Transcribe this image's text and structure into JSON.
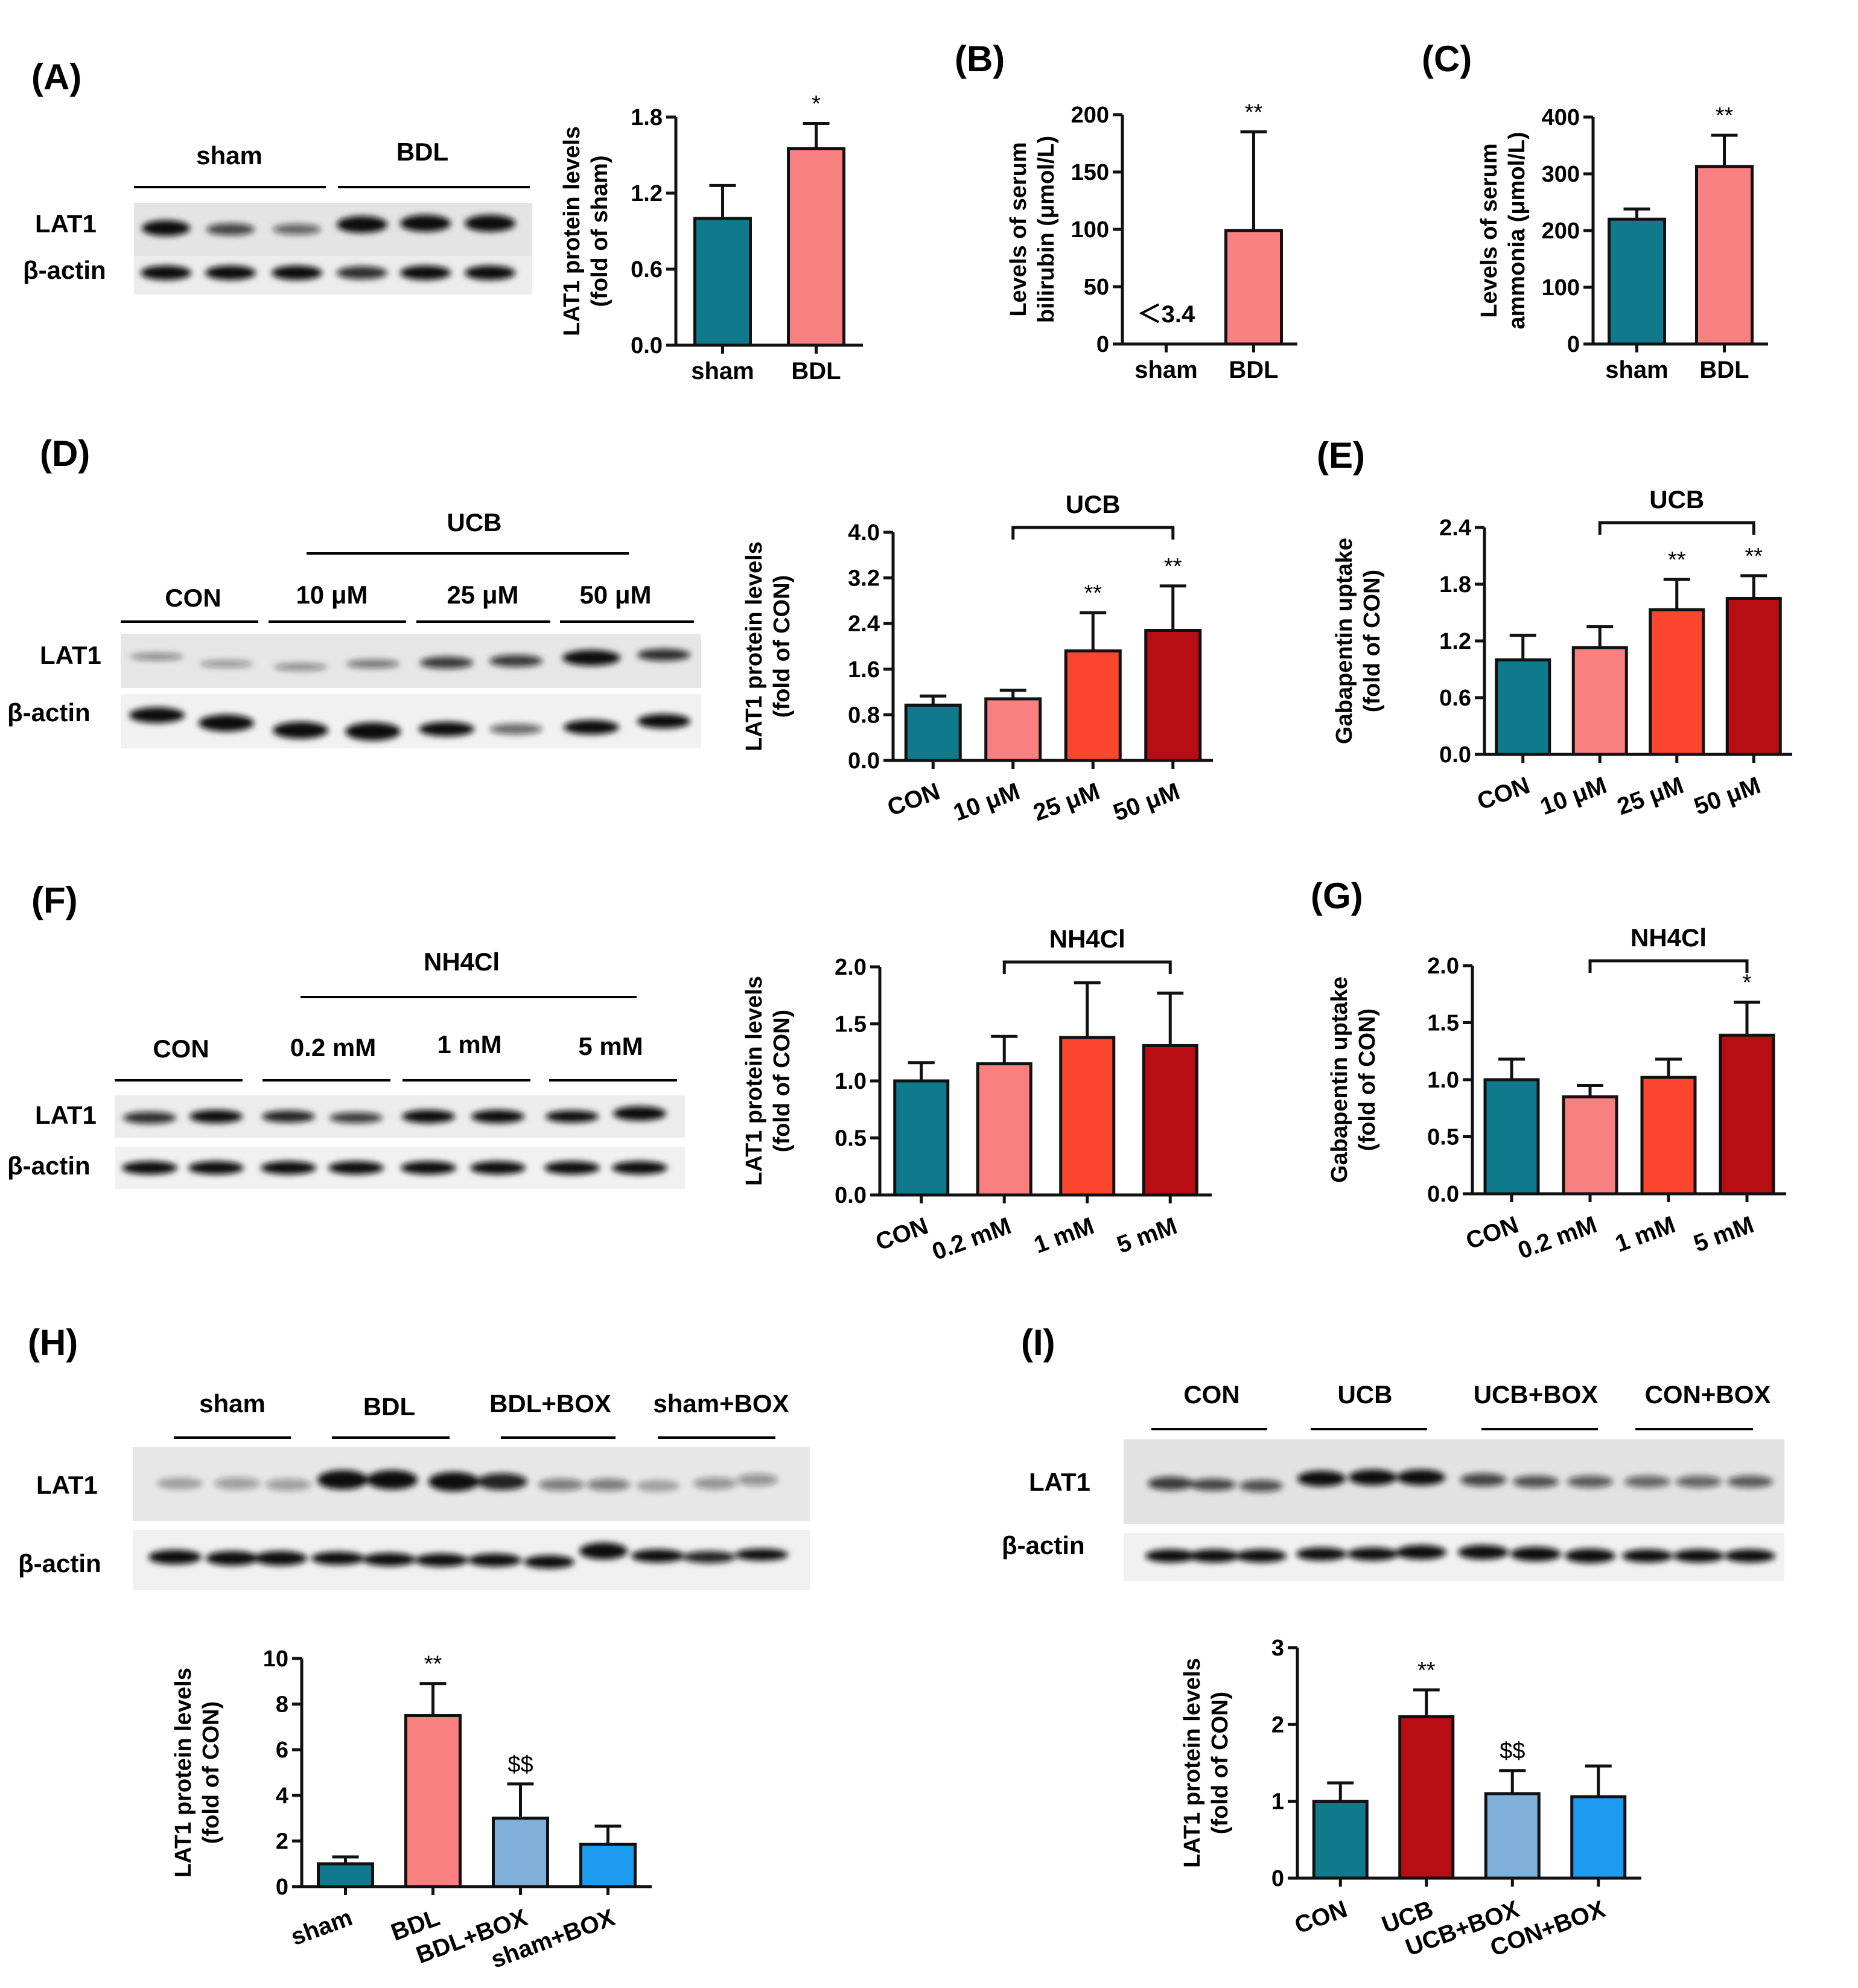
{
  "colors": {
    "teal": "#0f7a8c",
    "pink": "#f88080",
    "orange": "#fb462e",
    "darkred": "#b80d12",
    "lightblue": "#7fb0d9",
    "skyblue": "#1e9cf2"
  },
  "blots": [
    {
      "panel_label": "(A)",
      "groups": [
        "sham",
        "BDL"
      ],
      "rows": [
        "LAT1",
        "β-actin"
      ]
    },
    {
      "panel_label": "(D)",
      "super_group": "UCB",
      "groups": [
        "CON",
        "10 μM",
        "25 μM",
        "50 μM"
      ],
      "rows": [
        "LAT1",
        "β-actin"
      ]
    },
    {
      "panel_label": "(F)",
      "super_group": "NH4Cl",
      "groups": [
        "CON",
        "0.2 mM",
        "1 mM",
        "5 mM"
      ],
      "rows": [
        "LAT1",
        "β-actin"
      ]
    },
    {
      "panel_label": "(H)",
      "groups": [
        "sham",
        "BDL",
        "BDL+BOX",
        "sham+BOX"
      ],
      "rows": [
        "LAT1",
        "β-actin"
      ]
    },
    {
      "panel_label": "(I)",
      "groups": [
        "CON",
        "UCB",
        "UCB+BOX",
        "CON+BOX"
      ],
      "rows": [
        "LAT1",
        "β-actin"
      ]
    }
  ],
  "chart_data": [
    {
      "id": "A",
      "type": "bar",
      "ylabel": [
        "LAT1 protein levels",
        "(fold of sham)"
      ],
      "categories": [
        "sham",
        "BDL"
      ],
      "values": [
        1.0,
        1.55
      ],
      "errors": [
        0.26,
        0.2
      ],
      "colors": [
        "teal",
        "pink"
      ],
      "ylim": [
        0,
        1.8
      ],
      "yticks": [
        "0.0",
        "0.6",
        "1.2",
        "1.8"
      ],
      "annotations": [
        "",
        "*"
      ]
    },
    {
      "id": "B",
      "panel_label": "(B)",
      "type": "bar",
      "ylabel": [
        "Levels of serum",
        "bilirubin (μmol/L)"
      ],
      "categories": [
        "sham",
        "BDL"
      ],
      "values": [
        0,
        99
      ],
      "errors": [
        0,
        86
      ],
      "colors": [
        "teal",
        "pink"
      ],
      "ylim": [
        0,
        200
      ],
      "yticks": [
        "0",
        "50",
        "100",
        "150",
        "200"
      ],
      "annotations": [
        "",
        "**"
      ],
      "note": "＜3.4"
    },
    {
      "id": "C",
      "panel_label": "(C)",
      "type": "bar",
      "ylabel": [
        "Levels of serum",
        "ammonia (μmol/L)"
      ],
      "categories": [
        "sham",
        "BDL"
      ],
      "values": [
        220,
        313
      ],
      "errors": [
        18,
        55
      ],
      "colors": [
        "teal",
        "pink"
      ],
      "ylim": [
        0,
        400
      ],
      "yticks": [
        "0",
        "100",
        "200",
        "300",
        "400"
      ],
      "annotations": [
        "",
        "**"
      ]
    },
    {
      "id": "D",
      "type": "bar",
      "ylabel": [
        "LAT1 protein levels",
        "(fold of CON)"
      ],
      "categories": [
        "CON",
        "10 μM",
        "25 μM",
        "50 μM"
      ],
      "values": [
        0.97,
        1.08,
        1.92,
        2.28
      ],
      "errors": [
        0.16,
        0.15,
        0.67,
        0.78
      ],
      "colors": [
        "teal",
        "pink",
        "orange",
        "darkred"
      ],
      "ylim": [
        0,
        4.0
      ],
      "yticks": [
        "0.0",
        "0.8",
        "1.6",
        "2.4",
        "3.2",
        "4.0"
      ],
      "annotations": [
        "",
        "",
        "**",
        "**"
      ],
      "bracket": "UCB",
      "rotate": true
    },
    {
      "id": "E",
      "panel_label": "(E)",
      "type": "bar",
      "ylabel": [
        "Gabapentin uptake",
        "(fold of CON)"
      ],
      "categories": [
        "CON",
        "10 μM",
        "25 μM",
        "50 μM"
      ],
      "values": [
        1.0,
        1.13,
        1.53,
        1.65
      ],
      "errors": [
        0.26,
        0.22,
        0.32,
        0.24
      ],
      "colors": [
        "teal",
        "pink",
        "orange",
        "darkred"
      ],
      "ylim": [
        0,
        2.4
      ],
      "yticks": [
        "0.0",
        "0.6",
        "1.2",
        "1.8",
        "2.4"
      ],
      "annotations": [
        "",
        "",
        "**",
        "**"
      ],
      "bracket": "UCB",
      "rotate": true
    },
    {
      "id": "F",
      "type": "bar",
      "ylabel": [
        "LAT1 protein levels",
        "(fold of CON)"
      ],
      "categories": [
        "CON",
        "0.2 mM",
        "1 mM",
        "5 mM"
      ],
      "values": [
        1.0,
        1.15,
        1.38,
        1.31
      ],
      "errors": [
        0.16,
        0.24,
        0.48,
        0.46
      ],
      "colors": [
        "teal",
        "pink",
        "orange",
        "darkred"
      ],
      "ylim": [
        0,
        2.0
      ],
      "yticks": [
        "0.0",
        "0.5",
        "1.0",
        "1.5",
        "2.0"
      ],
      "annotations": [
        "",
        "",
        "",
        ""
      ],
      "bracket": "NH4Cl",
      "rotate": true
    },
    {
      "id": "G",
      "panel_label": "(G)",
      "type": "bar",
      "ylabel": [
        "Gabapentin uptake",
        "(fold of CON)"
      ],
      "categories": [
        "CON",
        "0.2 mM",
        "1 mM",
        "5 mM"
      ],
      "values": [
        1.0,
        0.85,
        1.02,
        1.39
      ],
      "errors": [
        0.18,
        0.1,
        0.16,
        0.29
      ],
      "colors": [
        "teal",
        "pink",
        "orange",
        "darkred"
      ],
      "ylim": [
        0,
        2.0
      ],
      "yticks": [
        "0.0",
        "0.5",
        "1.0",
        "1.5",
        "2.0"
      ],
      "annotations": [
        "",
        "",
        "",
        "*"
      ],
      "bracket": "NH4Cl",
      "rotate": true
    },
    {
      "id": "H",
      "type": "bar",
      "ylabel": [
        "LAT1 protein levels",
        "(fold of CON)"
      ],
      "categories": [
        "sham",
        "BDL",
        "BDL+BOX",
        "sham+BOX"
      ],
      "values": [
        1.0,
        7.5,
        3.0,
        1.85
      ],
      "errors": [
        0.3,
        1.4,
        1.5,
        0.8
      ],
      "colors": [
        "teal",
        "pink",
        "lightblue",
        "skyblue"
      ],
      "ylim": [
        0,
        10
      ],
      "yticks": [
        "0",
        "2",
        "4",
        "6",
        "8",
        "10"
      ],
      "annotations": [
        "",
        "**",
        "$$",
        ""
      ],
      "rotate": true
    },
    {
      "id": "I",
      "type": "bar",
      "ylabel": [
        "LAT1 protein levels",
        "(fold of CON)"
      ],
      "categories": [
        "CON",
        "UCB",
        "UCB+BOX",
        "CON+BOX"
      ],
      "values": [
        1.0,
        2.1,
        1.1,
        1.06
      ],
      "errors": [
        0.24,
        0.35,
        0.3,
        0.4
      ],
      "colors": [
        "teal",
        "darkred",
        "lightblue",
        "skyblue"
      ],
      "ylim": [
        0,
        3
      ],
      "yticks": [
        "0",
        "1",
        "2",
        "3"
      ],
      "annotations": [
        "",
        "**",
        "$$",
        ""
      ],
      "rotate": true
    }
  ]
}
